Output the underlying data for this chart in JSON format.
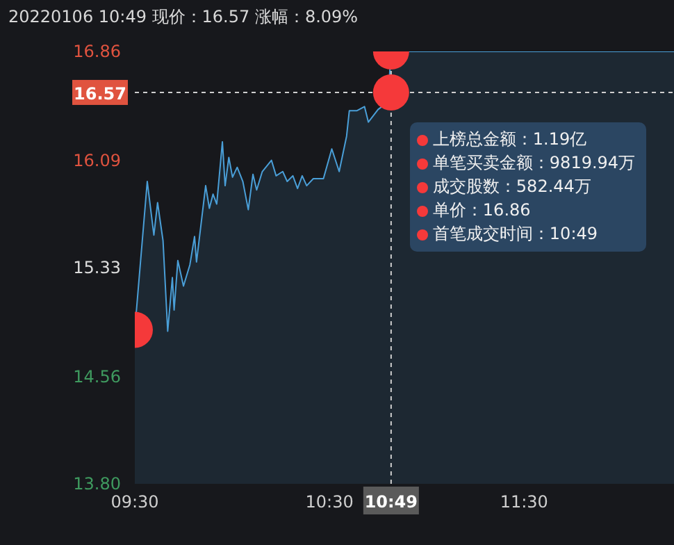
{
  "chart_data": {
    "type": "area",
    "title": "20220106 10:49 现价：16.57 涨幅：8.09%",
    "xlim": [
      9.5,
      12.27
    ],
    "xticks": [
      {
        "value": 9.5,
        "label": "09:30"
      },
      {
        "value": 10.5,
        "label": "10:30"
      },
      {
        "value": 10.816667,
        "label": "10:49"
      },
      {
        "value": 11.5,
        "label": "11:30"
      }
    ],
    "ylim": [
      13.8,
      16.86
    ],
    "yticks": [
      {
        "value": 13.8,
        "label": "13.80"
      },
      14.56,
      15.33,
      16.09,
      16.86
    ],
    "series": [
      {
        "color": "#4a9fd8",
        "marker": "none",
        "x": [
          9.5,
          9.564,
          9.598,
          9.617,
          9.645,
          9.669,
          9.693,
          9.702,
          9.721,
          9.75,
          9.783,
          9.807,
          9.817,
          9.864,
          9.883,
          9.902,
          9.921,
          9.95,
          9.964,
          9.983,
          10.002,
          10.026,
          10.055,
          10.083,
          10.107,
          10.126,
          10.155,
          10.202,
          10.226,
          10.26,
          10.283,
          10.312,
          10.336,
          10.36,
          10.383,
          10.417,
          10.469,
          10.512,
          10.55,
          10.588,
          10.602,
          10.64,
          10.68,
          10.7,
          10.75,
          10.8,
          10.816667,
          12.27
        ],
        "values": [
          14.89,
          15.94,
          15.56,
          15.79,
          15.52,
          14.88,
          15.26,
          15.03,
          15.38,
          15.2,
          15.35,
          15.55,
          15.37,
          15.91,
          15.75,
          15.85,
          15.78,
          16.22,
          15.91,
          16.11,
          15.97,
          16.04,
          15.94,
          15.74,
          15.99,
          15.88,
          16.01,
          16.09,
          15.98,
          16.01,
          15.94,
          15.98,
          15.89,
          15.98,
          15.91,
          15.96,
          15.96,
          16.17,
          16.01,
          16.26,
          16.44,
          16.44,
          16.47,
          16.36,
          16.45,
          16.5,
          16.86,
          16.86
        ]
      },
      {
        "type": "scatter",
        "color": "#f5393a",
        "marker": "circle",
        "x": [
          9.5,
          10.816667,
          10.816667
        ],
        "values": [
          14.89,
          16.86,
          16.57
        ]
      }
    ],
    "ref_lines": [
      {
        "axis": "y",
        "value": 16.57,
        "label": "16.57",
        "color": "#cfcfcf",
        "line_style": "dashed"
      },
      {
        "axis": "x",
        "value": 10.816667,
        "color": "#cfcfcf",
        "line_style": "dashed"
      }
    ],
    "annotations": [
      "上榜总金额：1.19亿",
      "单笔买卖金额：9819.94万",
      "成交股数：582.44万",
      "单价：16.86",
      "首笔成交时间：10:49"
    ]
  }
}
